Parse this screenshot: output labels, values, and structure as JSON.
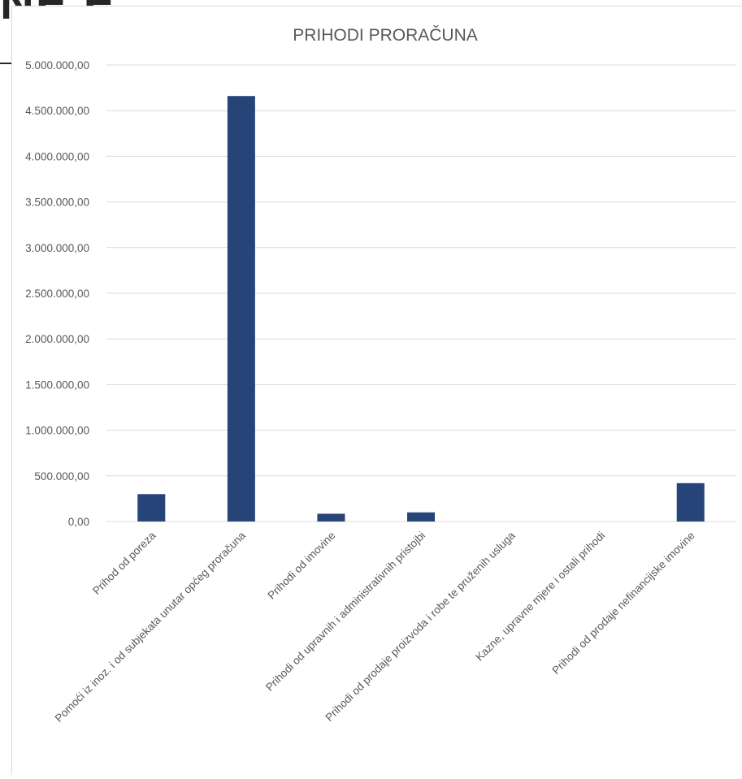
{
  "background": {
    "partial_heading": "NE E"
  },
  "chart_data": {
    "type": "bar",
    "title": "PRIHODI PRORAČUNA",
    "xlabel": "",
    "ylabel": "",
    "ylim": [
      0,
      5000000
    ],
    "yticks": [
      0,
      500000,
      1000000,
      1500000,
      2000000,
      2500000,
      3000000,
      3500000,
      4000000,
      4500000,
      5000000
    ],
    "ytick_labels": [
      "0,00",
      "500.000,00",
      "1.000.000,00",
      "1.500.000,00",
      "2.000.000,00",
      "2.500.000,00",
      "3.000.000,00",
      "3.500.000,00",
      "4.000.000,00",
      "4.500.000,00",
      "5.000.000,00"
    ],
    "categories": [
      "Prihod od poreza",
      "Pomoći iz inoz. i od subjekata unutar općeg proračuna",
      "Prihodi od imovine",
      "Prihodi od upravnih i administrativnih pristojbi",
      "Prihodi od prodaje proizvoda i robe te pruženih usluga",
      "Kazne, upravne mjere i ostali prihodi",
      "Prihodi od prodaje nefinancijske imovine"
    ],
    "values": [
      300000,
      4660000,
      85000,
      100000,
      0,
      0,
      420000
    ],
    "grid": true,
    "legend": "none",
    "colors": {
      "bar": "#264478",
      "grid": "#d9d9d9",
      "text": "#595959"
    }
  }
}
